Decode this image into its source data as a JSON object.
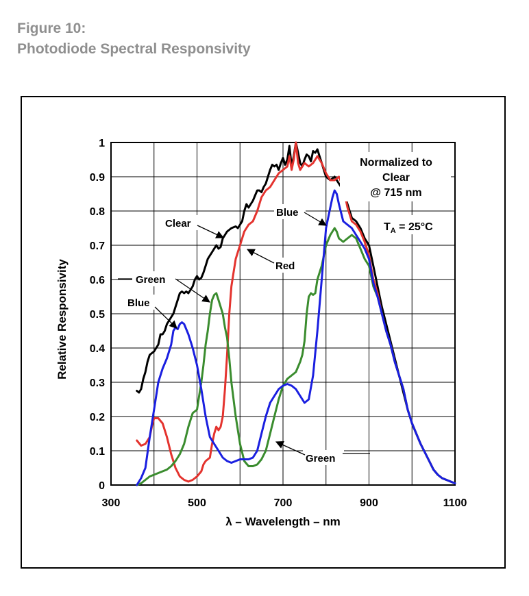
{
  "figure": {
    "number_label": "Figure 10:",
    "title": "Photodiode Spectral Responsivity"
  },
  "chart_data": {
    "type": "line",
    "title": "Photodiode Spectral Responsivity",
    "xlabel": "λ – Wavelength – nm",
    "ylabel": "Relative Responsivity",
    "xlim": [
      300,
      1100
    ],
    "ylim": [
      0,
      1
    ],
    "grid": true,
    "x_ticks": [
      300,
      500,
      700,
      900,
      1100
    ],
    "x_tick_labels": [
      "300",
      "500",
      "700",
      "900",
      "1100"
    ],
    "x_gridlines": [
      300,
      400,
      500,
      600,
      700,
      800,
      900,
      1000,
      1100
    ],
    "y_ticks": [
      0,
      0.1,
      0.2,
      0.3,
      0.4,
      0.5,
      0.6,
      0.7,
      0.8,
      0.9,
      1
    ],
    "y_tick_labels": [
      "0",
      "0.1",
      "0.2",
      "0.3",
      "0.4",
      "0.5",
      "0.6",
      "0.7",
      "0.8",
      "0.9",
      "1"
    ],
    "annotations": {
      "normalized": [
        "Normalized to",
        "Clear",
        "@ 715 nm"
      ],
      "temperature": {
        "prefix": "T",
        "subscript": "A",
        "suffix": " = 25°C"
      }
    },
    "series": [
      {
        "name": "Clear",
        "color": "#000000",
        "x": [
          360,
          365,
          370,
          375,
          380,
          385,
          390,
          395,
          400,
          405,
          410,
          415,
          420,
          425,
          430,
          435,
          440,
          445,
          450,
          455,
          460,
          465,
          470,
          475,
          480,
          485,
          490,
          495,
          500,
          505,
          510,
          515,
          520,
          525,
          530,
          535,
          540,
          545,
          550,
          555,
          560,
          570,
          580,
          590,
          595,
          600,
          605,
          610,
          615,
          620,
          625,
          630,
          635,
          640,
          645,
          650,
          655,
          660,
          665,
          670,
          675,
          680,
          685,
          690,
          695,
          700,
          705,
          710,
          715,
          720,
          725,
          730,
          735,
          740,
          745,
          750,
          755,
          760,
          765,
          770,
          775,
          780,
          785,
          790,
          795,
          800,
          810,
          820,
          830,
          840,
          850,
          860,
          870,
          880,
          890,
          900,
          910,
          920,
          930,
          940,
          950,
          960,
          970,
          980,
          990,
          1000,
          1010,
          1020,
          1030,
          1040,
          1050,
          1060,
          1070,
          1080,
          1090,
          1100
        ],
        "values": [
          0.275,
          0.27,
          0.28,
          0.31,
          0.33,
          0.36,
          0.38,
          0.385,
          0.39,
          0.4,
          0.41,
          0.44,
          0.44,
          0.45,
          0.47,
          0.48,
          0.49,
          0.5,
          0.52,
          0.54,
          0.56,
          0.565,
          0.56,
          0.565,
          0.56,
          0.57,
          0.58,
          0.6,
          0.61,
          0.6,
          0.605,
          0.62,
          0.64,
          0.66,
          0.67,
          0.68,
          0.69,
          0.7,
          0.69,
          0.695,
          0.72,
          0.74,
          0.75,
          0.755,
          0.75,
          0.76,
          0.77,
          0.8,
          0.82,
          0.81,
          0.82,
          0.83,
          0.845,
          0.86,
          0.86,
          0.855,
          0.87,
          0.88,
          0.9,
          0.92,
          0.935,
          0.93,
          0.935,
          0.92,
          0.94,
          0.955,
          0.935,
          0.95,
          0.99,
          0.93,
          0.96,
          1.0,
          0.97,
          0.94,
          0.93,
          0.95,
          0.965,
          0.96,
          0.945,
          0.975,
          0.97,
          0.98,
          0.96,
          0.94,
          0.92,
          0.9,
          0.89,
          0.9,
          0.88,
          0.86,
          0.82,
          0.78,
          0.77,
          0.75,
          0.72,
          0.7,
          0.64,
          0.58,
          0.52,
          0.47,
          0.42,
          0.37,
          0.32,
          0.27,
          0.22,
          0.18,
          0.15,
          0.12,
          0.095,
          0.07,
          0.045,
          0.03,
          0.02,
          0.015,
          0.01,
          0.005
        ]
      },
      {
        "name": "Red",
        "color": "#e4332e",
        "x": [
          360,
          370,
          380,
          390,
          395,
          400,
          410,
          420,
          430,
          440,
          450,
          460,
          470,
          480,
          490,
          500,
          510,
          515,
          520,
          530,
          535,
          540,
          545,
          550,
          555,
          560,
          565,
          570,
          575,
          580,
          585,
          590,
          595,
          600,
          610,
          620,
          630,
          640,
          650,
          660,
          670,
          680,
          690,
          700,
          710,
          715,
          720,
          725,
          730,
          735,
          740,
          750,
          760,
          770,
          780,
          790,
          800,
          810,
          820,
          830,
          840,
          850,
          860,
          870,
          880,
          890,
          900,
          910,
          920,
          930,
          940,
          950,
          960,
          970,
          980,
          990,
          1000,
          1010,
          1020,
          1030,
          1040,
          1050,
          1060,
          1070,
          1080,
          1090,
          1100
        ],
        "values": [
          0.13,
          0.115,
          0.12,
          0.14,
          0.17,
          0.195,
          0.195,
          0.18,
          0.14,
          0.09,
          0.05,
          0.025,
          0.015,
          0.01,
          0.015,
          0.025,
          0.04,
          0.06,
          0.07,
          0.08,
          0.12,
          0.15,
          0.17,
          0.16,
          0.17,
          0.2,
          0.28,
          0.38,
          0.5,
          0.58,
          0.62,
          0.66,
          0.68,
          0.7,
          0.74,
          0.76,
          0.77,
          0.8,
          0.84,
          0.86,
          0.87,
          0.89,
          0.91,
          0.92,
          0.93,
          0.96,
          0.92,
          0.95,
          1.0,
          0.94,
          0.92,
          0.94,
          0.93,
          0.94,
          0.96,
          0.94,
          0.91,
          0.89,
          0.89,
          0.9,
          0.87,
          0.81,
          0.77,
          0.76,
          0.74,
          0.71,
          0.67,
          0.6,
          0.56,
          0.5,
          0.45,
          0.41,
          0.36,
          0.32,
          0.28,
          0.22,
          0.18,
          0.15,
          0.12,
          0.095,
          0.07,
          0.045,
          0.03,
          0.02,
          0.015,
          0.01,
          0.005
        ]
      },
      {
        "name": "Green",
        "color": "#3a8c2e",
        "x": [
          360,
          370,
          380,
          390,
          400,
          410,
          420,
          430,
          440,
          450,
          460,
          470,
          480,
          490,
          500,
          505,
          510,
          515,
          520,
          525,
          530,
          535,
          540,
          545,
          550,
          555,
          560,
          565,
          570,
          575,
          580,
          590,
          600,
          610,
          620,
          630,
          640,
          650,
          660,
          670,
          680,
          690,
          700,
          710,
          720,
          730,
          740,
          745,
          750,
          755,
          760,
          765,
          770,
          775,
          780,
          790,
          800,
          810,
          820,
          825,
          830,
          840,
          850,
          860,
          870,
          880,
          890,
          900,
          910,
          920,
          930,
          940,
          950,
          960,
          970,
          980,
          990,
          1000,
          1010,
          1020,
          1030,
          1040,
          1050,
          1060,
          1070,
          1080,
          1090,
          1100
        ],
        "values": [
          0.0,
          0.005,
          0.015,
          0.025,
          0.03,
          0.035,
          0.04,
          0.045,
          0.055,
          0.07,
          0.09,
          0.12,
          0.17,
          0.21,
          0.22,
          0.26,
          0.3,
          0.35,
          0.41,
          0.45,
          0.5,
          0.54,
          0.555,
          0.56,
          0.54,
          0.52,
          0.5,
          0.46,
          0.43,
          0.37,
          0.3,
          0.2,
          0.12,
          0.07,
          0.055,
          0.055,
          0.06,
          0.075,
          0.1,
          0.15,
          0.2,
          0.25,
          0.29,
          0.31,
          0.32,
          0.33,
          0.36,
          0.38,
          0.42,
          0.5,
          0.55,
          0.56,
          0.555,
          0.56,
          0.6,
          0.64,
          0.7,
          0.73,
          0.75,
          0.74,
          0.72,
          0.71,
          0.72,
          0.73,
          0.72,
          0.69,
          0.66,
          0.64,
          0.58,
          0.55,
          0.5,
          0.45,
          0.41,
          0.36,
          0.32,
          0.28,
          0.22,
          0.18,
          0.15,
          0.12,
          0.095,
          0.07,
          0.045,
          0.03,
          0.02,
          0.015,
          0.01,
          0.005
        ]
      },
      {
        "name": "Blue",
        "color": "#1a1fe0",
        "x": [
          360,
          370,
          380,
          390,
          400,
          410,
          420,
          430,
          440,
          445,
          450,
          455,
          460,
          465,
          470,
          480,
          490,
          500,
          510,
          520,
          530,
          540,
          550,
          560,
          570,
          580,
          590,
          600,
          610,
          620,
          630,
          640,
          650,
          660,
          670,
          680,
          690,
          700,
          710,
          720,
          730,
          740,
          750,
          760,
          770,
          780,
          790,
          800,
          810,
          815,
          820,
          825,
          830,
          840,
          850,
          860,
          870,
          880,
          890,
          900,
          910,
          920,
          930,
          940,
          950,
          960,
          970,
          980,
          990,
          1000,
          1010,
          1020,
          1030,
          1040,
          1050,
          1060,
          1070,
          1080,
          1090,
          1100
        ],
        "values": [
          0.0,
          0.02,
          0.05,
          0.14,
          0.22,
          0.3,
          0.34,
          0.37,
          0.41,
          0.45,
          0.46,
          0.455,
          0.47,
          0.475,
          0.47,
          0.44,
          0.4,
          0.35,
          0.28,
          0.2,
          0.14,
          0.12,
          0.1,
          0.08,
          0.07,
          0.065,
          0.07,
          0.075,
          0.075,
          0.075,
          0.08,
          0.1,
          0.15,
          0.2,
          0.24,
          0.26,
          0.28,
          0.29,
          0.295,
          0.29,
          0.28,
          0.26,
          0.24,
          0.25,
          0.32,
          0.45,
          0.6,
          0.75,
          0.81,
          0.84,
          0.86,
          0.85,
          0.82,
          0.77,
          0.76,
          0.75,
          0.73,
          0.71,
          0.69,
          0.66,
          0.59,
          0.55,
          0.5,
          0.45,
          0.41,
          0.36,
          0.32,
          0.28,
          0.22,
          0.18,
          0.15,
          0.12,
          0.095,
          0.07,
          0.045,
          0.03,
          0.02,
          0.015,
          0.01,
          0.005
        ]
      }
    ],
    "curve_labels": [
      {
        "text": "Clear",
        "series": "Clear"
      },
      {
        "text": "Red",
        "series": "Red"
      },
      {
        "text": "Green",
        "series": "Green"
      },
      {
        "text": "Blue",
        "series": "Blue"
      },
      {
        "text": "Blue",
        "series": "Blue"
      },
      {
        "text": "Green",
        "series": "Green"
      }
    ]
  }
}
